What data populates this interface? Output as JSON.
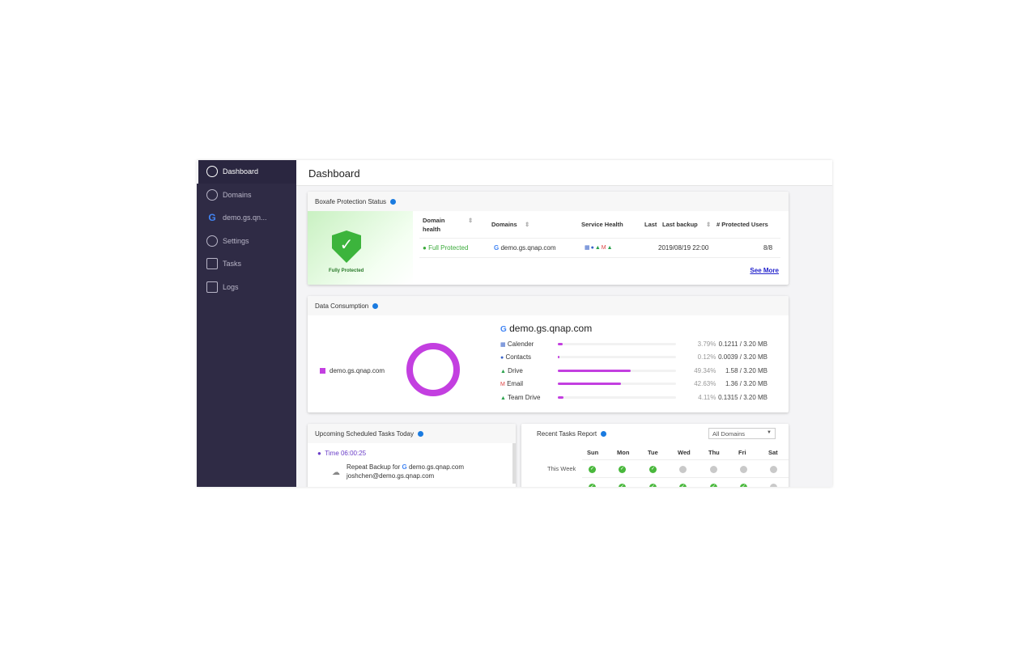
{
  "sidebar": {
    "items": [
      {
        "label": "Dashboard",
        "icon": "dashboard-icon",
        "active": true
      },
      {
        "label": "Domains",
        "icon": "domains-icon"
      },
      {
        "label": "demo.gs.qn...",
        "icon": "google-icon"
      },
      {
        "label": "Settings",
        "icon": "gear-icon"
      },
      {
        "label": "Tasks",
        "icon": "tasks-icon"
      },
      {
        "label": "Logs",
        "icon": "logs-icon"
      }
    ]
  },
  "header": {
    "title": "Dashboard"
  },
  "protection": {
    "title": "Boxafe Protection Status",
    "badge": "Fully Protected",
    "columns": [
      "Domain health",
      "Domains",
      "Service Health",
      "Last",
      "Last backup",
      "# Protected Users"
    ],
    "row": {
      "health": "Full Protected",
      "domain": "demo.gs.qnap.com",
      "last_backup": "2019/08/19 22:00",
      "users": "8/8"
    },
    "see_more": "See More"
  },
  "consumption": {
    "title": "Data Consumption",
    "legend": "demo.gs.qnap.com",
    "domain": "demo.gs.qnap.com",
    "accent": "#c33fe0",
    "services": [
      {
        "name": "Calender",
        "percent": "3.79%",
        "value": 3.79,
        "usage": "0.1211 / 3.20 MB",
        "icon": "calendar-icon"
      },
      {
        "name": "Contacts",
        "percent": "0.12%",
        "value": 0.12,
        "usage": "0.0039 / 3.20 MB",
        "icon": "contacts-icon"
      },
      {
        "name": "Drive",
        "percent": "49.34%",
        "value": 49.34,
        "usage": "1.58 / 3.20 MB",
        "icon": "drive-icon"
      },
      {
        "name": "Email",
        "percent": "42.63%",
        "value": 42.63,
        "usage": "1.36 / 3.20 MB",
        "icon": "gmail-icon"
      },
      {
        "name": "Team Drive",
        "percent": "4.11%",
        "value": 4.11,
        "usage": "0.1315 / 3.20 MB",
        "icon": "team-drive-icon"
      }
    ]
  },
  "schedule": {
    "title": "Upcoming Scheduled Tasks Today",
    "time": "Time 06:00:25",
    "task": "Repeat Backup for",
    "domain": "demo.gs.qnap.com",
    "user": "joshchen@demo.gs.qnap.com"
  },
  "report": {
    "title": "Recent Tasks Report",
    "filter": "All Domains",
    "days": [
      "Sun",
      "Mon",
      "Tue",
      "Wed",
      "Thu",
      "Fri",
      "Sat"
    ],
    "rows": [
      {
        "label": "This Week",
        "status": [
          "ok",
          "ok",
          "ok",
          "none",
          "none",
          "none",
          "none"
        ]
      },
      {
        "label": "",
        "status": [
          "ok",
          "ok",
          "ok",
          "ok",
          "ok",
          "ok",
          "none"
        ]
      }
    ]
  }
}
